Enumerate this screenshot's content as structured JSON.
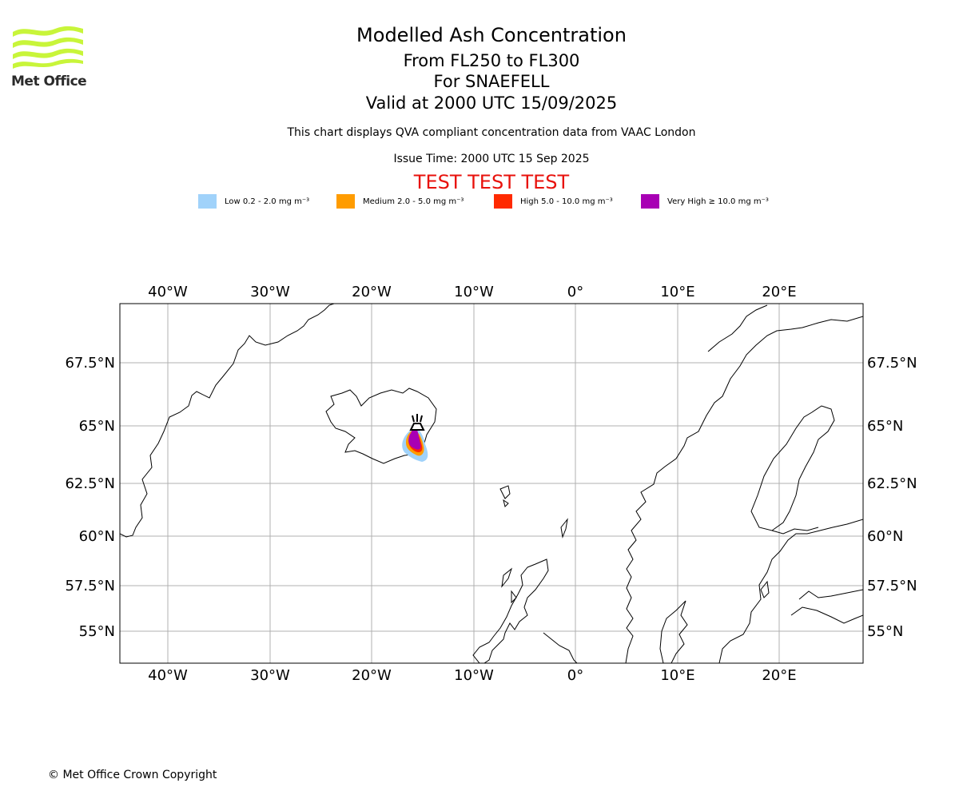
{
  "logo": {
    "text": "Met Office",
    "icon": "met-office-waves-logo",
    "color": "#c8f53a"
  },
  "header": {
    "title": "Modelled Ash Concentration",
    "flight_levels": "From FL250 to FL300",
    "volcano": "For SNAEFELL",
    "valid": "Valid at 2000 UTC 15/09/2025",
    "note": "This chart displays QVA compliant concentration data from VAAC London",
    "issue_time": "Issue Time: 2000 UTC 15 Sep 2025",
    "test_banner": "TEST TEST TEST",
    "test_color": "#e8120c"
  },
  "legend": [
    {
      "label": "Low 0.2 - 2.0 mg m⁻³",
      "color": "#a0d2fa"
    },
    {
      "label": "Medium 2.0 - 5.0 mg m⁻³",
      "color": "#ff9c00"
    },
    {
      "label": "High 5.0 - 10.0 mg m⁻³",
      "color": "#ff2a00"
    },
    {
      "label": "Very High  ≥  10.0 mg m⁻³",
      "color": "#a800b4"
    }
  ],
  "map": {
    "lon_labels": [
      "40°W",
      "30°W",
      "20°W",
      "10°W",
      "0°",
      "10°E",
      "20°E"
    ],
    "lat_labels": [
      "67.5°N",
      "65°N",
      "62.5°N",
      "60°N",
      "57.5°N",
      "55°N"
    ],
    "grid_color": "#b0b0b0",
    "coast_color": "#000000",
    "volcano_marker": "volcano-icon"
  },
  "footer": {
    "copyright": "© Met Office Crown Copyright"
  }
}
